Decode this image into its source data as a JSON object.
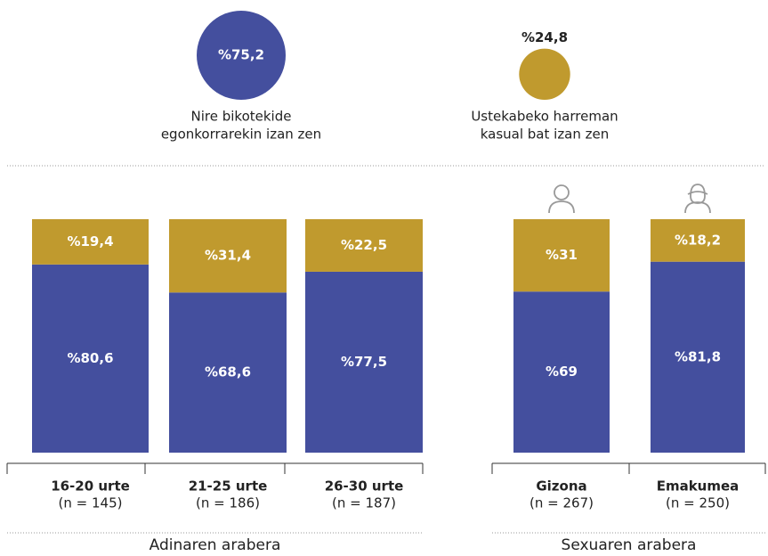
{
  "chart_data": [
    {
      "type": "bubble",
      "labels": [
        [
          "Nire bikotekide",
          "egonkorrarekin izan zen"
        ],
        [
          "Ustekabeko harreman",
          "kasual bat izan zen"
        ]
      ],
      "values": [
        75.2,
        24.8
      ],
      "value_labels": [
        "%75,2",
        "%24,8"
      ],
      "colors": [
        "#444f9e",
        "#c09a2e"
      ]
    },
    {
      "type": "stacked_bar",
      "categories": [
        "16-20 urte",
        "21-25 urte",
        "26-30 urte"
      ],
      "sublabels": [
        "(n = 145)",
        "(n = 186)",
        "(n = 187)"
      ],
      "xlabel": "Adinaren arabera",
      "ylim": [
        0,
        100
      ],
      "series": [
        {
          "color": "#444f9e",
          "values": [
            80.6,
            68.6,
            77.5
          ],
          "value_labels": [
            "%80,6",
            "%68,6",
            "%77,5"
          ]
        },
        {
          "color": "#c09a2e",
          "values": [
            19.4,
            31.4,
            22.5
          ],
          "value_labels": [
            "%19,4",
            "%31,4",
            "%22,5"
          ]
        }
      ]
    },
    {
      "type": "stacked_bar",
      "categories": [
        "Gizona",
        "Emakumea"
      ],
      "sublabels": [
        "(n = 267)",
        "(n = 250)"
      ],
      "xlabel": "Sexuaren arabera",
      "ylim": [
        0,
        100
      ],
      "series": [
        {
          "color": "#444f9e",
          "values": [
            69,
            81.8
          ],
          "value_labels": [
            "%69",
            "%81,8"
          ]
        },
        {
          "color": "#c09a2e",
          "values": [
            31,
            18.2
          ],
          "value_labels": [
            "%31",
            "%18,2"
          ]
        }
      ]
    }
  ]
}
